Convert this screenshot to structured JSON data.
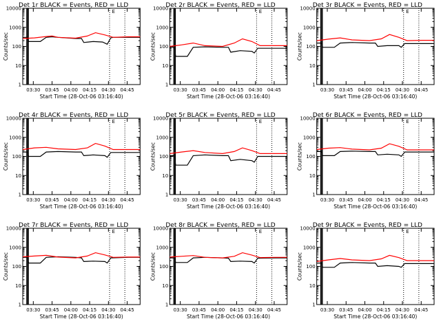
{
  "layout": {
    "rows": 3,
    "cols": 3
  },
  "colors": {
    "events": "#000000",
    "lld": "#ff0000",
    "axes": "#000000"
  },
  "chart_data": [
    {
      "type": "line",
      "title": "Det 1r BLACK = Events, RED = LLD",
      "xlabel": "Start Time (28-Oct-06 03:16:40)",
      "ylabel": "Counts/sec",
      "yscale": "log",
      "ylim": [
        1,
        10000
      ],
      "xticklabels": [
        "03:30",
        "03:45",
        "04:00",
        "04:15",
        "04:30",
        "04:45"
      ],
      "yticklabels": [
        "1",
        "10",
        "100",
        "1000",
        "10000"
      ],
      "series": [
        {
          "name": "Events",
          "color": "black",
          "x": [
            0,
            0.04,
            0.05,
            0.15,
            0.2,
            0.25,
            0.3,
            0.45,
            0.5,
            0.52,
            0.6,
            0.68,
            0.72,
            0.75,
            0.77,
            0.9,
            1
          ],
          "y": [
            300,
            300,
            180,
            180,
            300,
            320,
            300,
            260,
            260,
            160,
            180,
            170,
            130,
            280,
            300,
            300,
            300
          ]
        },
        {
          "name": "LLD",
          "color": "red",
          "x": [
            0,
            0.1,
            0.2,
            0.25,
            0.3,
            0.45,
            0.55,
            0.62,
            0.7,
            0.77,
            0.9,
            1
          ],
          "y": [
            260,
            280,
            330,
            350,
            300,
            270,
            350,
            520,
            400,
            300,
            320,
            320
          ]
        }
      ]
    },
    {
      "type": "line",
      "title": "Det 2r BLACK = Events, RED = LLD",
      "xlabel": "Start Time (28-Oct-06 03:16:40)",
      "ylabel": "Counts/sec",
      "yscale": "log",
      "ylim": [
        1,
        10000
      ],
      "xticklabels": [
        "03:30",
        "03:45",
        "04:00",
        "04:15",
        "04:30",
        "04:45"
      ],
      "yticklabels": [
        "1",
        "10",
        "100",
        "1000",
        "10000"
      ],
      "series": [
        {
          "name": "Events",
          "color": "black",
          "x": [
            0,
            0.04,
            0.05,
            0.15,
            0.2,
            0.3,
            0.45,
            0.5,
            0.52,
            0.6,
            0.7,
            0.72,
            0.75,
            0.9,
            1
          ],
          "y": [
            90,
            90,
            30,
            30,
            90,
            95,
            90,
            90,
            50,
            60,
            55,
            45,
            80,
            80,
            80
          ]
        },
        {
          "name": "LLD",
          "color": "red",
          "x": [
            0,
            0.1,
            0.2,
            0.3,
            0.45,
            0.55,
            0.62,
            0.7,
            0.77,
            0.9,
            1
          ],
          "y": [
            100,
            120,
            150,
            110,
            100,
            150,
            250,
            180,
            110,
            110,
            110
          ]
        }
      ]
    },
    {
      "type": "line",
      "title": "Det 3r BLACK = Events, RED = LLD",
      "xlabel": "Start Time (28-Oct-06 03:16:40)",
      "ylabel": "Counts/sec",
      "yscale": "log",
      "ylim": [
        1,
        10000
      ],
      "xticklabels": [
        "03:30",
        "03:45",
        "04:00",
        "04:15",
        "04:30",
        "04:45"
      ],
      "yticklabels": [
        "1",
        "10",
        "100",
        "1000",
        "10000"
      ],
      "series": [
        {
          "name": "Events",
          "color": "black",
          "x": [
            0,
            0.04,
            0.05,
            0.15,
            0.2,
            0.3,
            0.45,
            0.5,
            0.52,
            0.6,
            0.7,
            0.72,
            0.75,
            0.9,
            1
          ],
          "y": [
            150,
            150,
            90,
            90,
            150,
            160,
            150,
            150,
            100,
            110,
            110,
            90,
            140,
            140,
            140
          ]
        },
        {
          "name": "LLD",
          "color": "red",
          "x": [
            0,
            0.1,
            0.2,
            0.3,
            0.45,
            0.55,
            0.62,
            0.7,
            0.77,
            0.9,
            1
          ],
          "y": [
            200,
            240,
            280,
            220,
            200,
            250,
            420,
            300,
            200,
            210,
            210
          ]
        }
      ]
    },
    {
      "type": "line",
      "title": "Det 4r BLACK = Events, RED = LLD",
      "xlabel": "Start Time (28-Oct-06 03:16:40)",
      "ylabel": "Counts/sec",
      "yscale": "log",
      "ylim": [
        1,
        10000
      ],
      "xticklabels": [
        "03:30",
        "03:45",
        "04:00",
        "04:15",
        "04:30",
        "04:45"
      ],
      "yticklabels": [
        "1",
        "10",
        "100",
        "1000",
        "10000"
      ],
      "series": [
        {
          "name": "Events",
          "color": "black",
          "x": [
            0,
            0.04,
            0.05,
            0.15,
            0.2,
            0.3,
            0.45,
            0.5,
            0.52,
            0.6,
            0.7,
            0.72,
            0.75,
            0.9,
            1
          ],
          "y": [
            170,
            170,
            100,
            100,
            170,
            180,
            170,
            170,
            110,
            120,
            110,
            90,
            160,
            160,
            160
          ]
        },
        {
          "name": "LLD",
          "color": "red",
          "x": [
            0,
            0.1,
            0.2,
            0.3,
            0.45,
            0.55,
            0.62,
            0.7,
            0.77,
            0.9,
            1
          ],
          "y": [
            230,
            280,
            300,
            250,
            230,
            280,
            480,
            350,
            230,
            230,
            230
          ]
        }
      ]
    },
    {
      "type": "line",
      "title": "Det 5r BLACK = Events, RED = LLD",
      "xlabel": "Start Time (28-Oct-06 03:16:40)",
      "ylabel": "Counts/sec",
      "yscale": "log",
      "ylim": [
        1,
        10000
      ],
      "xticklabels": [
        "03:30",
        "03:45",
        "04:00",
        "04:15",
        "04:30",
        "04:45"
      ],
      "yticklabels": [
        "1",
        "10",
        "100",
        "1000",
        "10000"
      ],
      "series": [
        {
          "name": "Events",
          "color": "black",
          "x": [
            0,
            0.04,
            0.05,
            0.15,
            0.2,
            0.3,
            0.45,
            0.5,
            0.52,
            0.6,
            0.7,
            0.72,
            0.75,
            0.9,
            1
          ],
          "y": [
            110,
            110,
            35,
            35,
            110,
            120,
            110,
            110,
            60,
            70,
            60,
            50,
            100,
            100,
            100
          ]
        },
        {
          "name": "LLD",
          "color": "red",
          "x": [
            0,
            0.1,
            0.2,
            0.3,
            0.45,
            0.55,
            0.62,
            0.7,
            0.77,
            0.9,
            1
          ],
          "y": [
            140,
            170,
            200,
            160,
            140,
            180,
            280,
            200,
            140,
            140,
            140
          ]
        }
      ]
    },
    {
      "type": "line",
      "title": "Det 6r BLACK = Events, RED = LLD",
      "xlabel": "Start Time (28-Oct-06 03:16:40)",
      "ylabel": "Counts/sec",
      "yscale": "log",
      "ylim": [
        1,
        10000
      ],
      "xticklabels": [
        "03:30",
        "03:45",
        "04:00",
        "04:15",
        "04:30",
        "04:45"
      ],
      "yticklabels": [
        "1",
        "10",
        "100",
        "1000",
        "10000"
      ],
      "series": [
        {
          "name": "Events",
          "color": "black",
          "x": [
            0,
            0.04,
            0.05,
            0.15,
            0.2,
            0.3,
            0.45,
            0.5,
            0.52,
            0.6,
            0.7,
            0.72,
            0.75,
            0.9,
            1
          ],
          "y": [
            180,
            180,
            110,
            110,
            180,
            190,
            180,
            180,
            120,
            130,
            120,
            100,
            170,
            170,
            170
          ]
        },
        {
          "name": "LLD",
          "color": "red",
          "x": [
            0,
            0.1,
            0.2,
            0.3,
            0.45,
            0.55,
            0.62,
            0.7,
            0.77,
            0.9,
            1
          ],
          "y": [
            230,
            270,
            290,
            240,
            220,
            270,
            460,
            340,
            220,
            220,
            220
          ]
        }
      ]
    },
    {
      "type": "line",
      "title": "Det 7r BLACK = Events, RED = LLD",
      "xlabel": "Start Time (28-Oct-06 03:16:40)",
      "ylabel": "Counts/sec",
      "yscale": "log",
      "ylim": [
        1,
        10000
      ],
      "xticklabels": [
        "03:30",
        "03:45",
        "04:00",
        "04:15",
        "04:30",
        "04:45"
      ],
      "yticklabels": [
        "1",
        "10",
        "100",
        "1000",
        "10000"
      ],
      "series": [
        {
          "name": "Events",
          "color": "black",
          "x": [
            0,
            0.04,
            0.05,
            0.15,
            0.2,
            0.3,
            0.45,
            0.5,
            0.52,
            0.6,
            0.7,
            0.72,
            0.75,
            0.9,
            1
          ],
          "y": [
            300,
            300,
            150,
            150,
            300,
            320,
            300,
            280,
            180,
            190,
            180,
            150,
            280,
            300,
            300
          ]
        },
        {
          "name": "LLD",
          "color": "red",
          "x": [
            0,
            0.1,
            0.2,
            0.3,
            0.45,
            0.55,
            0.62,
            0.7,
            0.77,
            0.9,
            1
          ],
          "y": [
            320,
            350,
            380,
            310,
            280,
            350,
            520,
            400,
            300,
            310,
            310
          ]
        }
      ]
    },
    {
      "type": "line",
      "title": "Det 8r BLACK = Events, RED = LLD",
      "xlabel": "Start Time (28-Oct-06 03:16:40)",
      "ylabel": "Counts/sec",
      "yscale": "log",
      "ylim": [
        1,
        10000
      ],
      "xticklabels": [
        "03:30",
        "03:45",
        "04:00",
        "04:15",
        "04:30",
        "04:45"
      ],
      "yticklabels": [
        "1",
        "10",
        "100",
        "1000",
        "10000"
      ],
      "series": [
        {
          "name": "Events",
          "color": "black",
          "x": [
            0,
            0.04,
            0.05,
            0.15,
            0.2,
            0.3,
            0.45,
            0.5,
            0.52,
            0.6,
            0.7,
            0.72,
            0.75,
            0.9,
            1
          ],
          "y": [
            280,
            280,
            160,
            160,
            280,
            300,
            280,
            270,
            180,
            190,
            180,
            150,
            270,
            280,
            280
          ]
        },
        {
          "name": "LLD",
          "color": "red",
          "x": [
            0,
            0.1,
            0.2,
            0.3,
            0.45,
            0.55,
            0.62,
            0.7,
            0.77,
            0.9,
            1
          ],
          "y": [
            310,
            340,
            370,
            300,
            280,
            340,
            520,
            390,
            290,
            300,
            300
          ]
        }
      ]
    },
    {
      "type": "line",
      "title": "Det 9r BLACK = Events, RED = LLD",
      "xlabel": "Start Time (28-Oct-06 03:16:40)",
      "ylabel": "Counts/sec",
      "yscale": "log",
      "ylim": [
        1,
        10000
      ],
      "xticklabels": [
        "03:30",
        "03:45",
        "04:00",
        "04:15",
        "04:30",
        "04:45"
      ],
      "yticklabels": [
        "1",
        "10",
        "100",
        "1000",
        "10000"
      ],
      "series": [
        {
          "name": "Events",
          "color": "black",
          "x": [
            0,
            0.04,
            0.05,
            0.15,
            0.2,
            0.3,
            0.45,
            0.5,
            0.52,
            0.6,
            0.7,
            0.72,
            0.75,
            0.9,
            1
          ],
          "y": [
            150,
            150,
            90,
            90,
            150,
            160,
            150,
            150,
            100,
            110,
            100,
            90,
            140,
            140,
            140
          ]
        },
        {
          "name": "LLD",
          "color": "red",
          "x": [
            0,
            0.1,
            0.2,
            0.3,
            0.45,
            0.55,
            0.62,
            0.7,
            0.77,
            0.9,
            1
          ],
          "y": [
            180,
            220,
            260,
            220,
            200,
            250,
            380,
            290,
            200,
            200,
            200
          ]
        }
      ]
    }
  ]
}
